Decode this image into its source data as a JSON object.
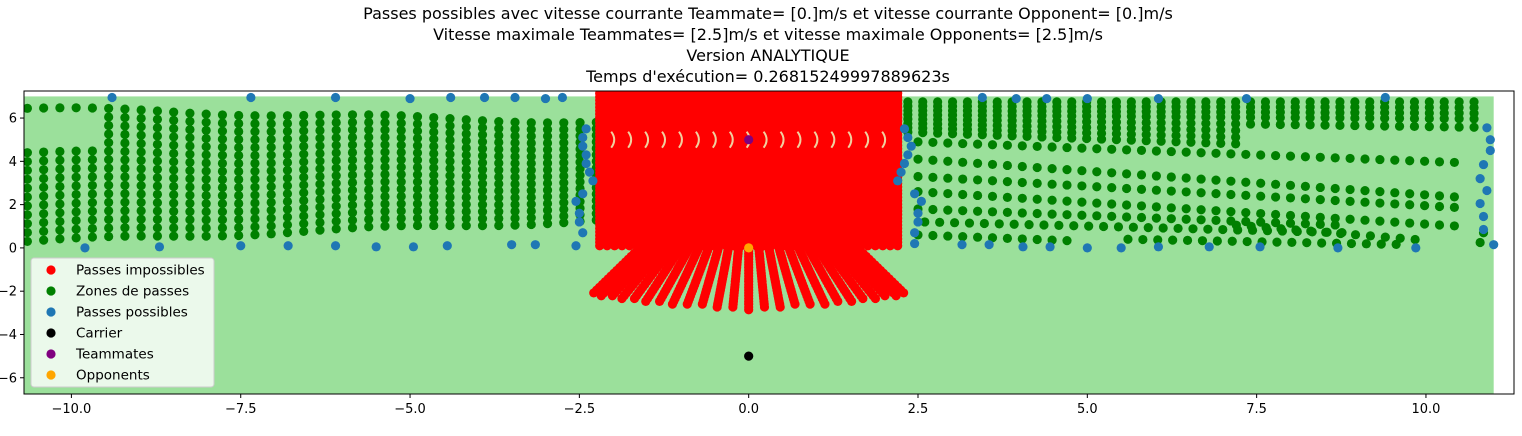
{
  "chart_data": {
    "type": "scatter",
    "title_lines": [
      "Passes possibles avec vitesse courrante Teammate= [0.]m/s et vitesse courrante Opponent= [0.]m/s",
      "Vitesse maximale Teammates= [2.5]m/s et vitesse maximale Opponents= [2.5]m/s",
      "Version ANALYTIQUE",
      "Temps d'exécution= 0.26815249997889623s"
    ],
    "xlim": [
      -10.7,
      11.3
    ],
    "ylim": [
      -6.75,
      7.25
    ],
    "xticks": [
      -10.0,
      -7.5,
      -5.0,
      -2.5,
      0.0,
      2.5,
      5.0,
      7.5,
      10.0
    ],
    "xtick_labels": [
      "−10.0",
      "−7.5",
      "−5.0",
      "−2.5",
      "0.0",
      "2.5",
      "5.0",
      "7.5",
      "10.0"
    ],
    "yticks": [
      -6,
      -4,
      -2,
      0,
      2,
      4,
      6
    ],
    "ytick_labels": [
      "−6",
      "−4",
      "−2",
      "0",
      "2",
      "4",
      "6"
    ],
    "field_area": {
      "x": [
        -10.7,
        11.0
      ],
      "y": [
        -6.75,
        7.0
      ],
      "color": "#9be09b"
    },
    "legend": {
      "placement": "lower-left",
      "entries": [
        {
          "label": "Passes impossibles",
          "color": "#ff0000"
        },
        {
          "label": "Zones de passes",
          "color": "#008000"
        },
        {
          "label": "Passes possibles",
          "color": "#1f77b4"
        },
        {
          "label": "Carrier",
          "color": "#000000"
        },
        {
          "label": "Teammates",
          "color": "#800080"
        },
        {
          "label": "Opponents",
          "color": "#ffa500"
        }
      ]
    },
    "series": [
      {
        "name": "Carrier",
        "color": "#000000",
        "points": [
          [
            0.0,
            -5.0
          ]
        ]
      },
      {
        "name": "Teammates",
        "color": "#800080",
        "points": [
          [
            0.0,
            5.0
          ]
        ]
      },
      {
        "name": "Opponents",
        "color": "#ffa500",
        "points": [
          [
            0.0,
            0.0
          ]
        ]
      },
      {
        "name": "Passes possibles",
        "color": "#1f77b4",
        "points": [
          [
            -9.4,
            6.95
          ],
          [
            -7.35,
            6.95
          ],
          [
            -6.1,
            6.95
          ],
          [
            -5.0,
            6.9
          ],
          [
            -4.4,
            6.95
          ],
          [
            -3.9,
            6.95
          ],
          [
            -3.45,
            6.95
          ],
          [
            -3.0,
            6.9
          ],
          [
            -2.75,
            6.95
          ],
          [
            3.45,
            6.95
          ],
          [
            3.95,
            6.9
          ],
          [
            4.4,
            6.9
          ],
          [
            5.0,
            6.9
          ],
          [
            6.05,
            6.9
          ],
          [
            7.35,
            6.9
          ],
          [
            9.4,
            6.95
          ],
          [
            -9.8,
            0.0
          ],
          [
            -8.7,
            0.05
          ],
          [
            -7.5,
            0.1
          ],
          [
            -6.8,
            0.1
          ],
          [
            -6.1,
            0.1
          ],
          [
            -5.5,
            0.05
          ],
          [
            -4.95,
            0.05
          ],
          [
            -4.45,
            0.1
          ],
          [
            -3.5,
            0.15
          ],
          [
            -3.15,
            0.15
          ],
          [
            -2.55,
            0.1
          ],
          [
            2.45,
            0.2
          ],
          [
            3.15,
            0.15
          ],
          [
            3.55,
            0.15
          ],
          [
            4.05,
            0.05
          ],
          [
            4.45,
            0.05
          ],
          [
            5.0,
            0.0
          ],
          [
            5.5,
            0.0
          ],
          [
            6.05,
            0.05
          ],
          [
            6.8,
            0.05
          ],
          [
            7.55,
            0.05
          ],
          [
            8.7,
            0.0
          ],
          [
            9.85,
            0.0
          ],
          [
            10.9,
            5.55
          ],
          [
            10.95,
            5.0
          ],
          [
            10.95,
            4.5
          ],
          [
            10.85,
            3.85
          ],
          [
            10.8,
            3.2
          ],
          [
            10.9,
            2.65
          ],
          [
            10.8,
            2.05
          ],
          [
            10.85,
            1.45
          ],
          [
            10.85,
            0.85
          ],
          [
            11.0,
            0.15
          ],
          [
            -2.4,
            5.5
          ],
          [
            -2.45,
            5.1
          ],
          [
            -2.45,
            4.7
          ],
          [
            -2.4,
            4.3
          ],
          [
            -2.4,
            3.9
          ],
          [
            -2.35,
            3.5
          ],
          [
            -2.3,
            3.1
          ],
          [
            -2.45,
            2.5
          ],
          [
            -2.55,
            2.15
          ],
          [
            -2.5,
            1.6
          ],
          [
            -2.5,
            1.2
          ],
          [
            -2.45,
            0.7
          ],
          [
            2.3,
            5.5
          ],
          [
            2.35,
            5.1
          ],
          [
            2.4,
            4.7
          ],
          [
            2.35,
            4.3
          ],
          [
            2.3,
            3.9
          ],
          [
            2.25,
            3.5
          ],
          [
            2.2,
            3.1
          ],
          [
            2.45,
            2.5
          ],
          [
            2.55,
            2.15
          ],
          [
            2.5,
            1.6
          ],
          [
            2.5,
            1.2
          ],
          [
            2.45,
            0.7
          ]
        ]
      }
    ]
  }
}
